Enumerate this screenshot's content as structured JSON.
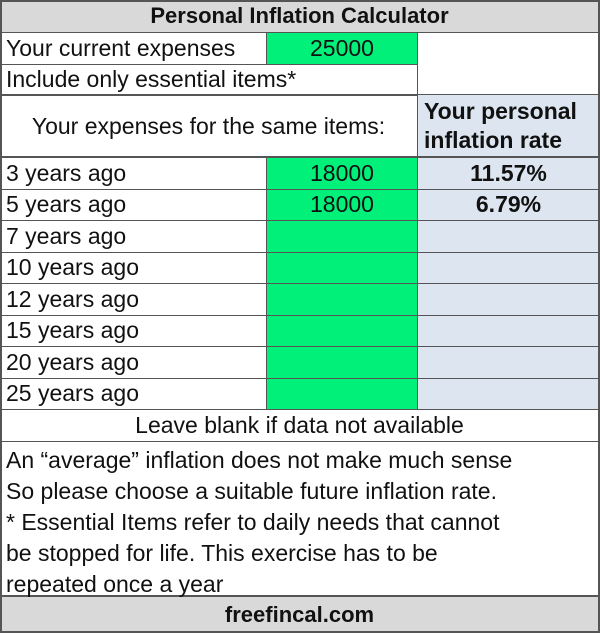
{
  "title": "Personal Inflation Calculator",
  "current": {
    "label": "Your current expenses",
    "value": "25000",
    "note": "Include only essential items*"
  },
  "header": {
    "expenses_label": "Your expenses for the same items:",
    "rate_label": "Your personal inflation rate"
  },
  "rows": [
    {
      "label": "3 years ago",
      "value": "18000",
      "rate": "11.57%"
    },
    {
      "label": "5 years ago",
      "value": "18000",
      "rate": "6.79%"
    },
    {
      "label": "7 years ago",
      "value": "",
      "rate": ""
    },
    {
      "label": "10 years ago",
      "value": "",
      "rate": ""
    },
    {
      "label": "12 years ago",
      "value": "",
      "rate": ""
    },
    {
      "label": "15 years ago",
      "value": "",
      "rate": ""
    },
    {
      "label": "20 years ago",
      "value": "",
      "rate": ""
    },
    {
      "label": "25 years ago",
      "value": "",
      "rate": ""
    }
  ],
  "blank_note": "Leave blank if data not available",
  "notes": [
    "An “average” inflation does not make much sense",
    "So please choose a suitable future inflation rate.",
    "* Essential Items refer to daily needs that cannot",
    "be stopped for life. This exercise has to be",
    "repeated once a year"
  ],
  "footer": "freefincal.com",
  "colors": {
    "input": "#00f07a",
    "output": "#dde6f0",
    "header": "#d9d9d9"
  }
}
